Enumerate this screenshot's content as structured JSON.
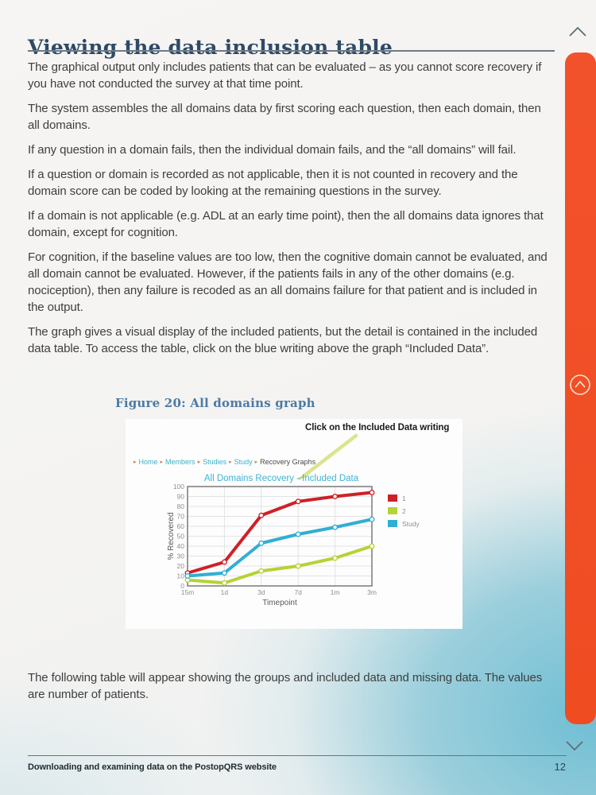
{
  "page": {
    "title": "Viewing the data inclusion table",
    "paragraphs": [
      "The graphical output only includes patients that can be evaluated – as you cannot score recovery if you have not conducted the survey at that time point.",
      "The system assembles the all domains data by first scoring each question, then each domain, then all domains.",
      "If any question in a domain fails, then the individual domain fails, and the “all domains” will fail.",
      "If a question or domain is recorded as not applicable, then it is not counted in recovery and the domain score can be coded by looking at the remaining questions in the survey.",
      "If a domain is not applicable (e.g. ADL at an early time point), then the all domains data ignores that domain, except for cognition.",
      "For cognition, if the baseline values are too low, then the cognitive domain cannot be evaluated, and all domain cannot be evaluated. However, if the patients fails  in any of the other domains (e.g. nociception), then any failure is recoded as an all domains failure for that patient and is included in the output.",
      "The graph gives a visual display of the included patients, but the detail is contained in the included data table. To access the table, click on the blue writing above the graph “Included Data”."
    ],
    "closing_paragraph": "The following table will appear showing the groups and included data and missing data. The values are number of patients.",
    "footer": {
      "left_text": "Downloading and examining data on the PostopQRS website",
      "page_number": "12"
    }
  },
  "figure": {
    "caption": "Figure 20:  All domains graph",
    "annotation": "Click on the Included Data writing",
    "breadcrumb": {
      "separator": "▸",
      "links": [
        "Home",
        "Members",
        "Studies",
        "Study"
      ],
      "current": "Recovery Graphs"
    }
  },
  "chart_data": {
    "type": "line",
    "title": "All Domains Recovery - Included Data",
    "xlabel": "Timepoint",
    "ylabel": "% Recovered",
    "categories": [
      "15m",
      "1d",
      "3d",
      "7d",
      "1m",
      "3m"
    ],
    "ylim": [
      0,
      100
    ],
    "yticks": [
      0,
      10,
      20,
      30,
      40,
      50,
      60,
      70,
      80,
      90,
      100
    ],
    "grid": true,
    "legend_position": "right",
    "series": [
      {
        "name": "1",
        "color": "#ce2127",
        "values": [
          13,
          24,
          71,
          85,
          90,
          94
        ]
      },
      {
        "name": "2",
        "color": "#b5d334",
        "values": [
          6,
          3,
          15,
          20,
          28,
          40
        ]
      },
      {
        "name": "Study",
        "color": "#31aed4",
        "values": [
          10,
          13,
          43,
          52,
          59,
          67
        ]
      }
    ]
  },
  "icons": {
    "scroll_up": "chevron-up",
    "scroll_down": "chevron-down",
    "back_to_top": "circled-chevron-up"
  },
  "colors": {
    "accent_orange": "#f1502a",
    "title_blue": "#2d4a66",
    "caption_blue": "#4b7aa5",
    "link_teal": "#3ab3c8",
    "annotation_arrow": "#dce48c"
  }
}
